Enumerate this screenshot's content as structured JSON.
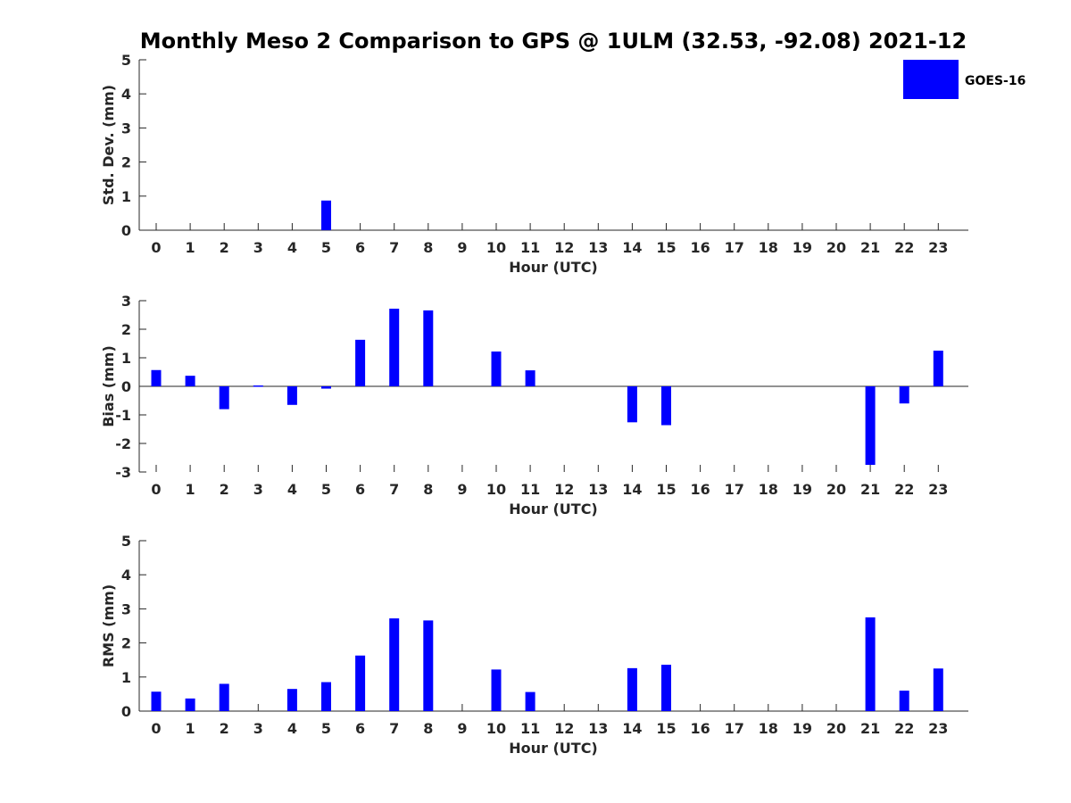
{
  "title": "Monthly Meso 2 Comparison to GPS @ 1ULM (32.53, -92.08) 2021-12",
  "legend": {
    "label": "GOES-16",
    "color": "#0000ff"
  },
  "bar_color": "#0000ff",
  "chart_data": [
    {
      "type": "bar",
      "ylabel": "Std. Dev. (mm)",
      "xlabel": "Hour (UTC)",
      "ylim": [
        0,
        5
      ],
      "yticks": [
        0,
        1,
        2,
        3,
        4,
        5
      ],
      "categories": [
        "0",
        "1",
        "2",
        "3",
        "4",
        "5",
        "6",
        "7",
        "8",
        "9",
        "10",
        "11",
        "12",
        "13",
        "14",
        "15",
        "16",
        "17",
        "18",
        "19",
        "20",
        "21",
        "22",
        "23"
      ],
      "series": [
        {
          "name": "GOES-16",
          "values": [
            null,
            null,
            null,
            null,
            null,
            0.87,
            null,
            null,
            null,
            null,
            null,
            null,
            null,
            null,
            null,
            null,
            null,
            null,
            null,
            null,
            null,
            null,
            null,
            null
          ]
        }
      ]
    },
    {
      "type": "bar",
      "ylabel": "Bias (mm)",
      "xlabel": "Hour (UTC)",
      "ylim": [
        -3,
        3
      ],
      "yticks": [
        -3,
        -2,
        -1,
        0,
        1,
        2,
        3
      ],
      "categories": [
        "0",
        "1",
        "2",
        "3",
        "4",
        "5",
        "6",
        "7",
        "8",
        "9",
        "10",
        "11",
        "12",
        "13",
        "14",
        "15",
        "16",
        "17",
        "18",
        "19",
        "20",
        "21",
        "22",
        "23"
      ],
      "series": [
        {
          "name": "GOES-16",
          "values": [
            0.57,
            0.37,
            -0.8,
            0.03,
            -0.65,
            -0.08,
            1.63,
            2.72,
            2.66,
            null,
            1.22,
            0.56,
            null,
            null,
            -1.26,
            -1.36,
            null,
            null,
            null,
            null,
            null,
            -2.75,
            -0.6,
            1.25
          ]
        }
      ]
    },
    {
      "type": "bar",
      "ylabel": "RMS (mm)",
      "xlabel": "Hour (UTC)",
      "ylim": [
        0,
        5
      ],
      "yticks": [
        0,
        1,
        2,
        3,
        4,
        5
      ],
      "categories": [
        "0",
        "1",
        "2",
        "3",
        "4",
        "5",
        "6",
        "7",
        "8",
        "9",
        "10",
        "11",
        "12",
        "13",
        "14",
        "15",
        "16",
        "17",
        "18",
        "19",
        "20",
        "21",
        "22",
        "23"
      ],
      "series": [
        {
          "name": "GOES-16",
          "values": [
            0.57,
            0.37,
            0.8,
            null,
            0.65,
            0.85,
            1.63,
            2.72,
            2.66,
            null,
            1.22,
            0.56,
            null,
            null,
            1.26,
            1.36,
            null,
            null,
            null,
            null,
            null,
            2.75,
            0.6,
            1.25
          ]
        }
      ]
    }
  ]
}
